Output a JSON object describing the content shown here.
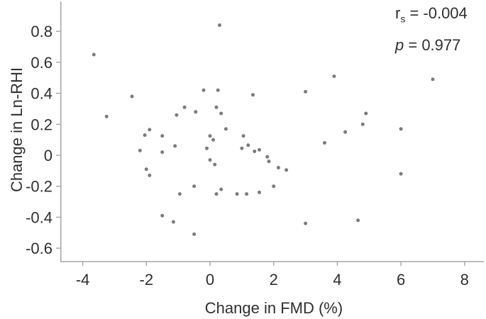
{
  "chart_data": {
    "type": "scatter",
    "title": "",
    "xlabel": "Change in FMD (%)",
    "ylabel": "Change in Ln-RHI",
    "xlim": [
      -4.7,
      8.6
    ],
    "ylim": [
      -0.69,
      0.99
    ],
    "grid": false,
    "x_ticks": [
      -4,
      -2,
      0,
      2,
      4,
      6,
      8
    ],
    "y_ticks": [
      "0.8",
      "0.6",
      "0.4",
      "0.2",
      "0",
      "-0.2",
      "-0.4",
      "-0.6"
    ],
    "y_tick_values": [
      0.8,
      0.6,
      0.4,
      0.2,
      0,
      -0.2,
      -0.4,
      -0.6
    ],
    "point_color": "#757575",
    "axis_color": "#a6a6a6",
    "text_color": "#2f2f2f",
    "points": [
      [
        -3.65,
        0.65
      ],
      [
        0.3,
        0.84
      ],
      [
        -3.25,
        0.25
      ],
      [
        -2.45,
        0.38
      ],
      [
        -0.2,
        0.42
      ],
      [
        0.25,
        0.42
      ],
      [
        1.35,
        0.39
      ],
      [
        3.0,
        0.41
      ],
      [
        3.9,
        0.51
      ],
      [
        7.0,
        0.49
      ],
      [
        -1.05,
        0.26
      ],
      [
        -0.8,
        0.31
      ],
      [
        -0.45,
        0.28
      ],
      [
        0.2,
        0.31
      ],
      [
        0.35,
        0.27
      ],
      [
        4.9,
        0.27
      ],
      [
        4.8,
        0.2
      ],
      [
        6.0,
        0.17
      ],
      [
        4.25,
        0.15
      ],
      [
        3.6,
        0.08
      ],
      [
        0.5,
        0.17
      ],
      [
        -1.9,
        0.165
      ],
      [
        -2.05,
        0.13
      ],
      [
        -1.5,
        0.125
      ],
      [
        0.0,
        0.125
      ],
      [
        0.1,
        0.1
      ],
      [
        -1.1,
        0.06
      ],
      [
        -2.2,
        0.03
      ],
      [
        -1.5,
        0.02
      ],
      [
        -0.1,
        0.045
      ],
      [
        1.05,
        0.125
      ],
      [
        1.2,
        0.065
      ],
      [
        1.0,
        0.045
      ],
      [
        1.4,
        0.025
      ],
      [
        1.55,
        0.035
      ],
      [
        1.8,
        -0.01
      ],
      [
        1.85,
        -0.04
      ],
      [
        2.15,
        -0.08
      ],
      [
        2.4,
        -0.095
      ],
      [
        0.0,
        -0.03
      ],
      [
        0.15,
        -0.06
      ],
      [
        -2.0,
        -0.09
      ],
      [
        -1.9,
        -0.13
      ],
      [
        -0.5,
        -0.2
      ],
      [
        -0.95,
        -0.25
      ],
      [
        0.2,
        -0.25
      ],
      [
        0.35,
        -0.22
      ],
      [
        0.85,
        -0.25
      ],
      [
        1.15,
        -0.25
      ],
      [
        1.55,
        -0.24
      ],
      [
        2.0,
        -0.2
      ],
      [
        6.0,
        -0.12
      ],
      [
        -1.5,
        -0.39
      ],
      [
        -1.15,
        -0.43
      ],
      [
        -0.5,
        -0.51
      ],
      [
        3.0,
        -0.44
      ],
      [
        4.65,
        -0.42
      ]
    ],
    "annotation": {
      "r_label": "r",
      "r_sub": "s",
      "r_value": " = -0.004",
      "p_label": "p",
      "p_value": " = 0.977"
    }
  }
}
